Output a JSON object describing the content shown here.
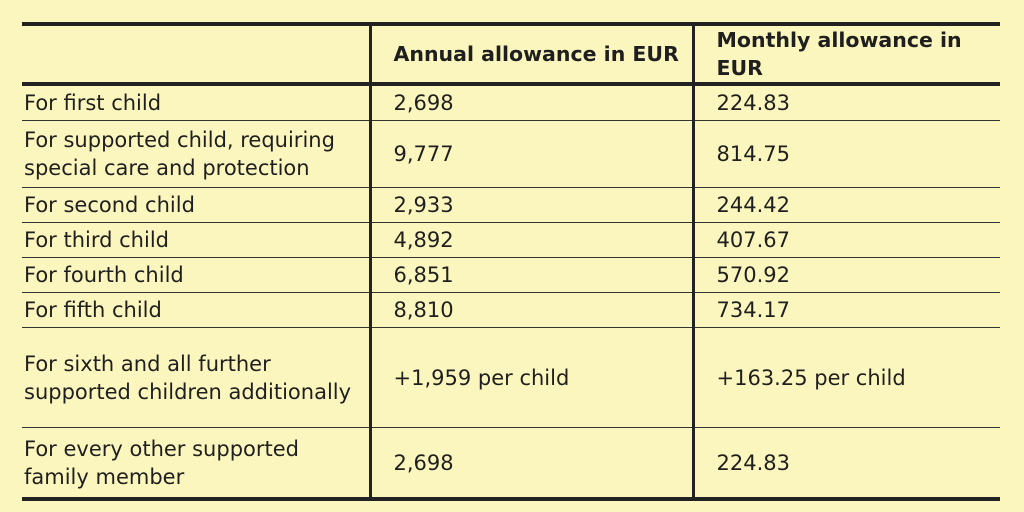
{
  "table": {
    "headers": {
      "label": "",
      "annual": "Annual allowance in EUR",
      "monthly": "Monthly allowance in EUR"
    },
    "rows": [
      {
        "label": "For first child",
        "annual": "2,698",
        "monthly": "224.83"
      },
      {
        "label": "For supported child, requiring special care and protection",
        "annual": "9,777",
        "monthly": "814.75"
      },
      {
        "label": "For second child",
        "annual": "2,933",
        "monthly": "244.42"
      },
      {
        "label": "For third child",
        "annual": "4,892",
        "monthly": "407.67"
      },
      {
        "label": "For fourth child",
        "annual": "6,851",
        "monthly": "570.92"
      },
      {
        "label": "For fifth child",
        "annual": "8,810",
        "monthly": "734.17"
      },
      {
        "label": "For sixth and all further supported children additionally",
        "annual": "+1,959 per child",
        "monthly": "+163.25 per child"
      },
      {
        "label": "For every other supported family member",
        "annual": "2,698",
        "monthly": "224.83"
      }
    ]
  }
}
